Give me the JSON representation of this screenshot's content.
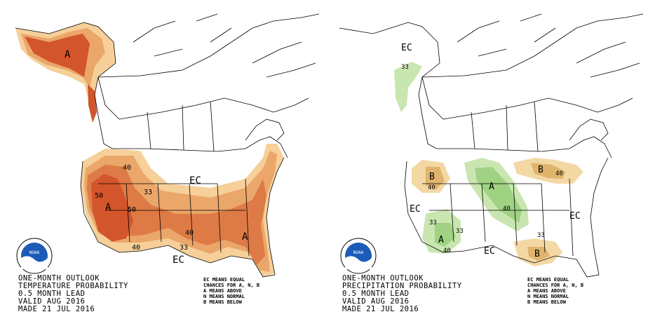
{
  "colors": {
    "above_33": "#f6cf99",
    "above_40": "#eba66a",
    "above_50": "#de7a45",
    "above_60": "#d3552c",
    "wet_33": "#c9e6b0",
    "wet_40": "#9fd283",
    "dry_33": "#f3d8a4",
    "dry_40": "#e0b46c",
    "land_line": "#000000",
    "noaa_blue": "#1c5bb7"
  },
  "temperature_panel": {
    "title_lines": [
      "ONE-MONTH OUTLOOK",
      "TEMPERATURE PROBABILITY",
      "0.5 MONTH LEAD",
      "VALID AUG 2016",
      "MADE 21 JUL 2016"
    ],
    "legend_lines": [
      "EC MEANS EQUAL",
      "CHANCES FOR A, N, B",
      "A MEANS ABOVE",
      "N MEANS NORMAL",
      "B MEANS BELOW"
    ],
    "labels": {
      "alaska_a": "A",
      "west_a": "A",
      "se_a": "A",
      "ec_central": "EC",
      "ec_south": "EC",
      "c40_n": "40",
      "c50_w": "50",
      "c50_e": "50",
      "c33_mid": "33",
      "c40_s": "40",
      "c33_s": "33",
      "c40_sw": "40"
    }
  },
  "precipitation_panel": {
    "title_lines": [
      "ONE-MONTH OUTLOOK",
      "PRECIPITATION PROBABILITY",
      "0.5 MONTH LEAD",
      "VALID AUG 2016",
      "MADE 21 JUL 2016"
    ],
    "legend_lines": [
      "EC MEANS EQUAL",
      "CHANCES FOR A, N, B",
      "A MEANS ABOVE",
      "N MEANS NORMAL",
      "B MEANS BELOW"
    ],
    "labels": {
      "ec_ak": "EC",
      "ak_33": "33",
      "b_nw": "B",
      "nw_40": "40",
      "a_plains": "A",
      "plains_40": "40",
      "b_gl": "B",
      "gl_40": "40",
      "a_sw": "A",
      "sw_33a": "33",
      "sw_33b": "33",
      "sw_40": "40",
      "b_gulf": "B",
      "gulf_33": "33",
      "ec_west": "EC",
      "ec_south": "EC",
      "ec_east": "EC"
    }
  },
  "logo_text": "NOAA"
}
